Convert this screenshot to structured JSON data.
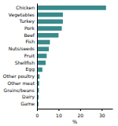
{
  "chart_data": {
    "type": "bar",
    "orientation": "horizontal",
    "categories": [
      "Chicken",
      "Vegetables",
      "Turkey",
      "Pork",
      "Beef",
      "Fish",
      "Nuts/seeds",
      "Fruit",
      "Shellfish",
      "Egg",
      "Other poultry",
      "Other meat",
      "Grains/beans",
      "Dairy",
      "Game"
    ],
    "values": [
      32,
      12,
      12,
      11.5,
      10,
      6,
      5.5,
      4.5,
      4,
      2.5,
      1.2,
      1.0,
      0.9,
      0.8,
      0.7
    ],
    "color": "#3a8a8c",
    "xlabel": "%",
    "xlim": [
      0,
      35
    ],
    "xticks": [
      0,
      10,
      20,
      30
    ],
    "grid": false
  }
}
